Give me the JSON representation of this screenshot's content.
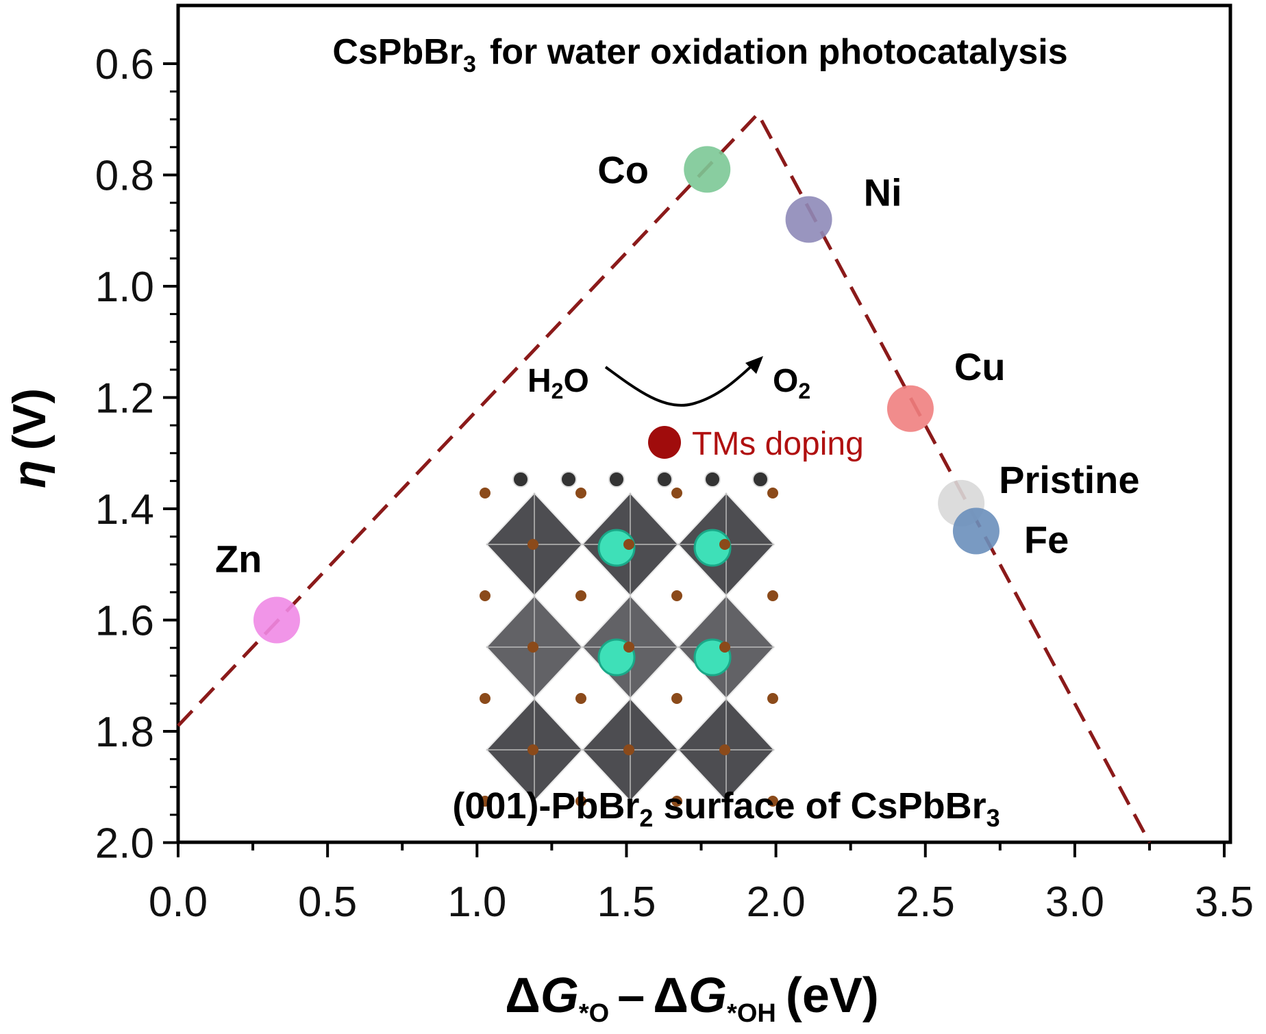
{
  "chart_data": {
    "type": "scatter",
    "title_main": "CsPbBr",
    "title_sub": "3",
    "title_rest": "for water oxidation photocatalysis",
    "xlabel": {
      "delta1": "Δ",
      "g1": "G",
      "sub1": "*O",
      "minus": "–",
      "delta2": "Δ",
      "g2": "G",
      "sub2": "*OH",
      "unit": "(eV)"
    },
    "ylabel": {
      "eta": "η",
      "unit": "(V)"
    },
    "xlim": [
      0,
      3.5
    ],
    "ylim": [
      2.0,
      0.55
    ],
    "y_inverted": true,
    "xticks": [
      "0.0",
      "0.5",
      "1.0",
      "1.5",
      "2.0",
      "2.5",
      "3.0",
      "3.5"
    ],
    "yticks": [
      "0.6",
      "0.8",
      "1.0",
      "1.2",
      "1.4",
      "1.6",
      "1.8",
      "2.0"
    ],
    "points": [
      {
        "label": "Co",
        "x": 1.77,
        "y": 0.79,
        "color": "#7cc896"
      },
      {
        "label": "Ni",
        "x": 2.11,
        "y": 0.88,
        "color": "#8e8ab8"
      },
      {
        "label": "Cu",
        "x": 2.45,
        "y": 1.22,
        "color": "#f08080"
      },
      {
        "label": "Pristine",
        "x": 2.62,
        "y": 1.39,
        "color": "#d8d8d8"
      },
      {
        "label": "Fe",
        "x": 2.67,
        "y": 1.44,
        "color": "#6a8fbb"
      },
      {
        "label": "Zn",
        "x": 0.33,
        "y": 1.6,
        "color": "#f08ae6"
      }
    ],
    "volcano_line": {
      "color": "#8b1a1a",
      "points": [
        [
          0.0,
          1.79
        ],
        [
          1.94,
          0.69
        ],
        [
          3.25,
          2.0
        ]
      ]
    },
    "inset": {
      "reactant": "H",
      "reactant_sub": "2",
      "reactant_end": "O",
      "product": "O",
      "product_sub": "2",
      "doping_label": "TMs doping",
      "doping_color": "#b01010",
      "caption_a": "(001)-PbBr",
      "caption_sub1": "2",
      "caption_b": " surface of CsPbBr",
      "caption_sub2": "3"
    }
  }
}
